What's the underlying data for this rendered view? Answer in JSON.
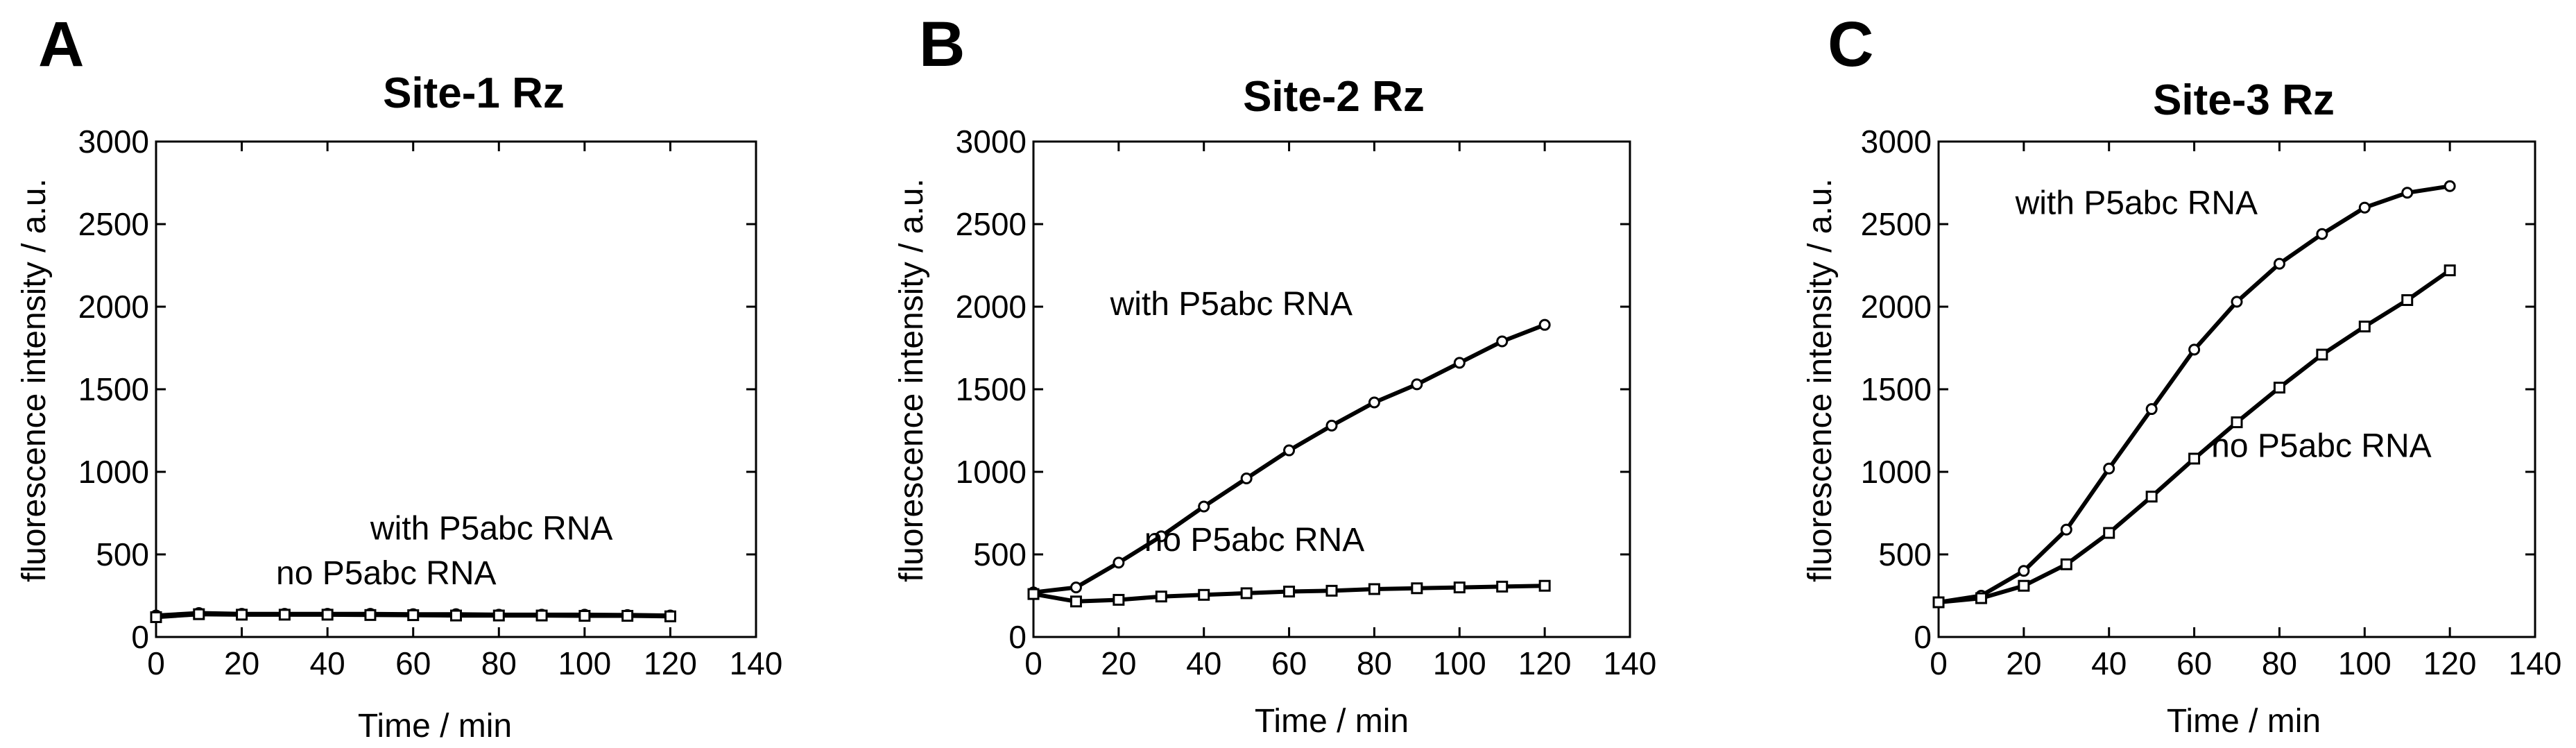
{
  "chart_data": [
    {
      "panel": "A",
      "type": "line",
      "title": "Site-1 Rz",
      "xlabel": "Time / min",
      "ylabel": "fluorescence intensity / a.u.",
      "xlim": [
        0,
        140
      ],
      "ylim": [
        0,
        3000
      ],
      "xticks": [
        0,
        20,
        40,
        60,
        80,
        100,
        120,
        140
      ],
      "yticks": [
        0,
        500,
        1000,
        1500,
        2000,
        2500,
        3000
      ],
      "grid": false,
      "series": [
        {
          "name": "with P5abc RNA",
          "marker": "circle",
          "x": [
            0,
            10,
            20,
            30,
            40,
            50,
            60,
            70,
            80,
            90,
            100,
            110,
            120
          ],
          "y": [
            130,
            145,
            140,
            140,
            140,
            140,
            138,
            138,
            135,
            135,
            135,
            133,
            130
          ]
        },
        {
          "name": "no P5abc RNA",
          "marker": "square",
          "x": [
            0,
            10,
            20,
            30,
            40,
            50,
            60,
            70,
            80,
            90,
            100,
            110,
            120
          ],
          "y": [
            120,
            138,
            135,
            135,
            135,
            133,
            132,
            130,
            130,
            130,
            128,
            128,
            125
          ]
        }
      ],
      "annotations": [
        {
          "text": "with P5abc RNA",
          "x": 50,
          "y": 590
        },
        {
          "text": "no P5abc RNA",
          "x": 28,
          "y": 320
        }
      ]
    },
    {
      "panel": "B",
      "type": "line",
      "title": "Site-2 Rz",
      "xlabel": "Time / min",
      "ylabel": "fluorescence intensity / a.u.",
      "xlim": [
        0,
        140
      ],
      "ylim": [
        0,
        3000
      ],
      "xticks": [
        0,
        20,
        40,
        60,
        80,
        100,
        120,
        140
      ],
      "yticks": [
        0,
        500,
        1000,
        1500,
        2000,
        2500,
        3000
      ],
      "grid": false,
      "series": [
        {
          "name": "with P5abc RNA",
          "marker": "circle",
          "x": [
            0,
            10,
            20,
            30,
            40,
            50,
            60,
            70,
            80,
            90,
            100,
            110,
            120
          ],
          "y": [
            270,
            300,
            450,
            610,
            790,
            960,
            1130,
            1280,
            1420,
            1530,
            1660,
            1790,
            1890
          ]
        },
        {
          "name": "no P5abc RNA",
          "marker": "square",
          "x": [
            0,
            10,
            20,
            30,
            40,
            50,
            60,
            70,
            80,
            90,
            100,
            110,
            120
          ],
          "y": [
            260,
            215,
            225,
            245,
            255,
            265,
            275,
            280,
            290,
            295,
            300,
            305,
            310
          ]
        }
      ],
      "annotations": [
        {
          "text": "with P5abc RNA",
          "x": 18,
          "y": 1950
        },
        {
          "text": "no P5abc RNA",
          "x": 26,
          "y": 520
        }
      ]
    },
    {
      "panel": "C",
      "type": "line",
      "title": "Site-3 Rz",
      "xlabel": "Time / min",
      "ylabel": "fluorescence intensity / a.u.",
      "xlim": [
        0,
        140
      ],
      "ylim": [
        0,
        3000
      ],
      "xticks": [
        0,
        20,
        40,
        60,
        80,
        100,
        120,
        140
      ],
      "yticks": [
        0,
        500,
        1000,
        1500,
        2000,
        2500,
        3000
      ],
      "grid": false,
      "series": [
        {
          "name": "with P5abc RNA",
          "marker": "circle",
          "x": [
            0,
            10,
            20,
            30,
            40,
            50,
            60,
            70,
            80,
            90,
            100,
            110,
            120
          ],
          "y": [
            210,
            250,
            400,
            650,
            1020,
            1380,
            1740,
            2030,
            2260,
            2440,
            2600,
            2690,
            2730
          ]
        },
        {
          "name": "no P5abc RNA",
          "marker": "square",
          "x": [
            0,
            10,
            20,
            30,
            40,
            50,
            60,
            70,
            80,
            90,
            100,
            110,
            120
          ],
          "y": [
            210,
            235,
            310,
            440,
            630,
            850,
            1080,
            1300,
            1510,
            1710,
            1880,
            2040,
            2220
          ]
        }
      ],
      "annotations": [
        {
          "text": "with P5abc RNA",
          "x": 18,
          "y": 2560
        },
        {
          "text": "no P5abc RNA",
          "x": 64,
          "y": 1090
        }
      ]
    }
  ]
}
